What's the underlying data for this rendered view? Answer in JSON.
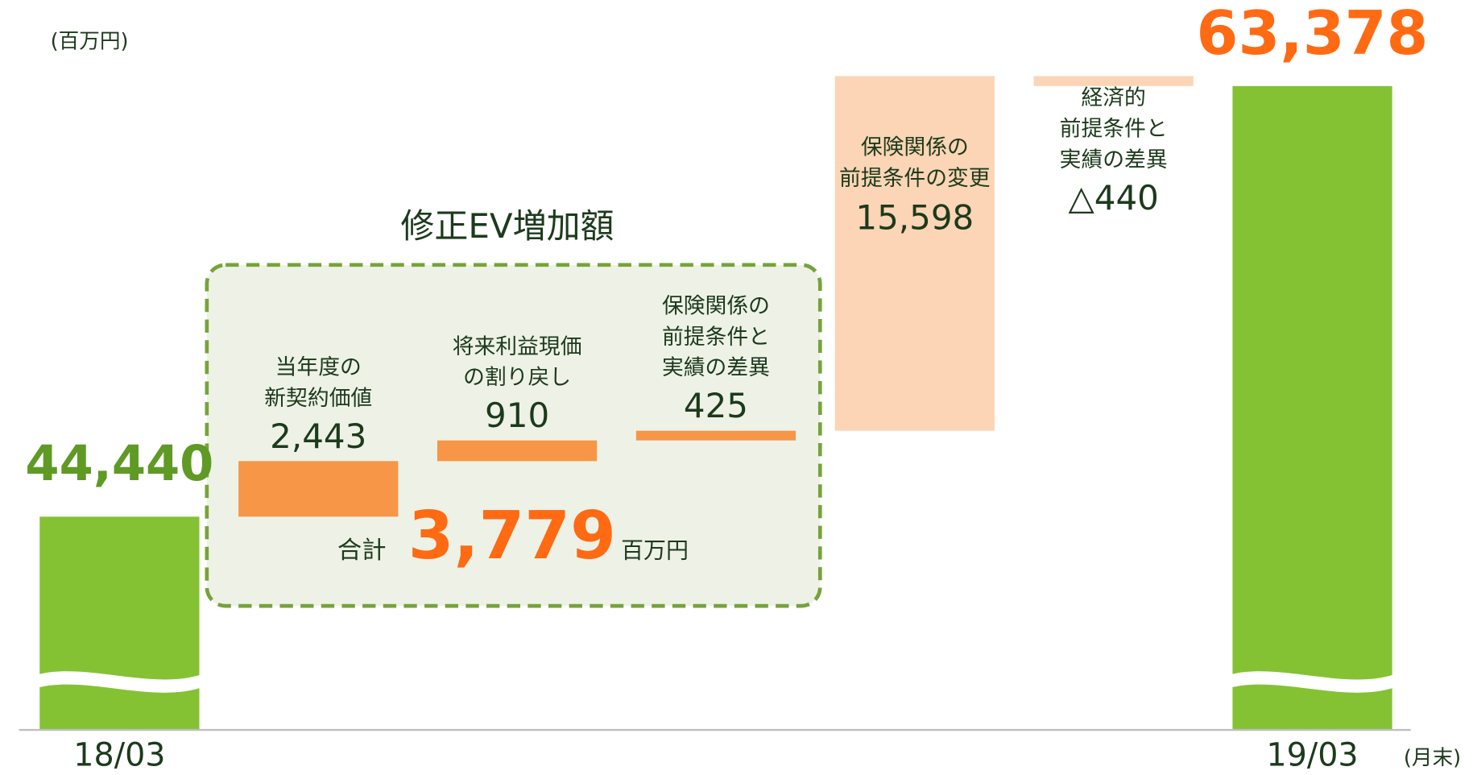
{
  "chart_data": {
    "type": "waterfall",
    "unit": "(百万円)",
    "x_unit": "(月末)",
    "categories": [
      "18/03",
      [
        "当年度の",
        "新契約価値"
      ],
      [
        "将来利益現価",
        "の割り戻し"
      ],
      [
        "保険関係の",
        "前提条件と",
        "実績の差異"
      ],
      [
        "保険関係の",
        "前提条件の変更"
      ],
      [
        "経済的",
        "前提条件と",
        "実績の差異"
      ],
      "19/03"
    ],
    "values": [
      44440,
      2443,
      910,
      425,
      15598,
      -440,
      63378
    ],
    "value_labels": [
      "44,440",
      "2,443",
      "910",
      "425",
      "15,598",
      "△440",
      "63,378"
    ],
    "measures": [
      "total",
      "relative",
      "relative",
      "relative",
      "relative",
      "relative",
      "total"
    ],
    "colors": [
      "#84c234",
      "#f79646",
      "#f79646",
      "#f79646",
      "#fbd5b5",
      "#fbd5b5",
      "#84c234"
    ],
    "group": {
      "title": "修正EV増加額",
      "total_label": "合計",
      "total": 3779,
      "total_value_label": "3,779",
      "total_unit": "百万円"
    }
  }
}
